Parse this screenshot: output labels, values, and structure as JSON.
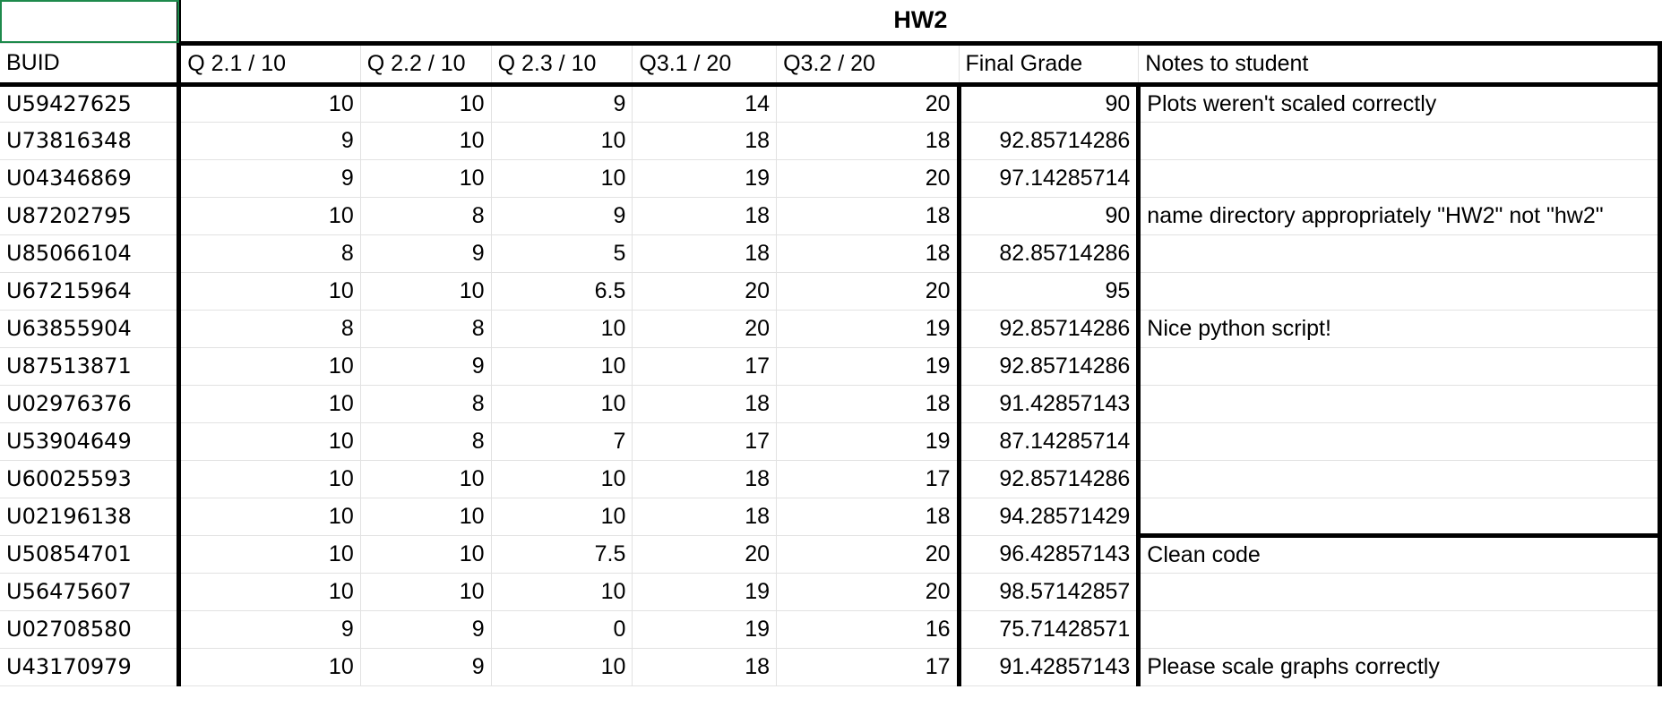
{
  "sheet_title": "HW2",
  "headers": [
    "BUID",
    "Q 2.1 / 10",
    "Q 2.2 / 10",
    "Q 2.3 / 10",
    "Q3.1 / 20",
    "Q3.2 / 20",
    "Final Grade",
    "Notes to student"
  ],
  "rows": [
    {
      "buid": "U59427625",
      "q21": "10",
      "q22": "10",
      "q23": "9",
      "q31": "14",
      "q32": "20",
      "final": "90",
      "note": "Plots weren't scaled correctly"
    },
    {
      "buid": "U73816348",
      "q21": "9",
      "q22": "10",
      "q23": "10",
      "q31": "18",
      "q32": "18",
      "final": "92.85714286",
      "note": ""
    },
    {
      "buid": "U04346869",
      "q21": "9",
      "q22": "10",
      "q23": "10",
      "q31": "19",
      "q32": "20",
      "final": "97.14285714",
      "note": ""
    },
    {
      "buid": "U87202795",
      "q21": "10",
      "q22": "8",
      "q23": "9",
      "q31": "18",
      "q32": "18",
      "final": "90",
      "note": "name directory appropriately \"HW2\" not \"hw2\""
    },
    {
      "buid": "U85066104",
      "q21": "8",
      "q22": "9",
      "q23": "5",
      "q31": "18",
      "q32": "18",
      "final": "82.85714286",
      "note": ""
    },
    {
      "buid": "U67215964",
      "q21": "10",
      "q22": "10",
      "q23": "6.5",
      "q31": "20",
      "q32": "20",
      "final": "95",
      "note": ""
    },
    {
      "buid": "U63855904",
      "q21": "8",
      "q22": "8",
      "q23": "10",
      "q31": "20",
      "q32": "19",
      "final": "92.85714286",
      "note": "Nice python script!"
    },
    {
      "buid": "U87513871",
      "q21": "10",
      "q22": "9",
      "q23": "10",
      "q31": "17",
      "q32": "19",
      "final": "92.85714286",
      "note": ""
    },
    {
      "buid": "U02976376",
      "q21": "10",
      "q22": "8",
      "q23": "10",
      "q31": "18",
      "q32": "18",
      "final": "91.42857143",
      "note": ""
    },
    {
      "buid": "U53904649",
      "q21": "10",
      "q22": "8",
      "q23": "7",
      "q31": "17",
      "q32": "19",
      "final": "87.14285714",
      "note": ""
    },
    {
      "buid": "U60025593",
      "q21": "10",
      "q22": "10",
      "q23": "10",
      "q31": "18",
      "q32": "17",
      "final": "92.85714286",
      "note": ""
    },
    {
      "buid": "U02196138",
      "q21": "10",
      "q22": "10",
      "q23": "10",
      "q31": "18",
      "q32": "18",
      "final": "94.28571429",
      "note": ""
    },
    {
      "buid": "U50854701",
      "q21": "10",
      "q22": "10",
      "q23": "7.5",
      "q31": "20",
      "q32": "20",
      "final": "96.42857143",
      "note": "Clean code"
    },
    {
      "buid": "U56475607",
      "q21": "10",
      "q22": "10",
      "q23": "10",
      "q31": "19",
      "q32": "20",
      "final": "98.57142857",
      "note": ""
    },
    {
      "buid": "U02708580",
      "q21": "9",
      "q22": "9",
      "q23": "0",
      "q31": "19",
      "q32": "16",
      "final": "75.71428571",
      "note": ""
    },
    {
      "buid": "U43170979",
      "q21": "10",
      "q22": "9",
      "q23": "10",
      "q31": "18",
      "q32": "17",
      "final": "91.42857143",
      "note": "Please scale graphs correctly"
    }
  ],
  "colors": {
    "selection_border": "#1e8a4c",
    "gridline": "#e2e2e2",
    "thick_border": "#000000"
  }
}
